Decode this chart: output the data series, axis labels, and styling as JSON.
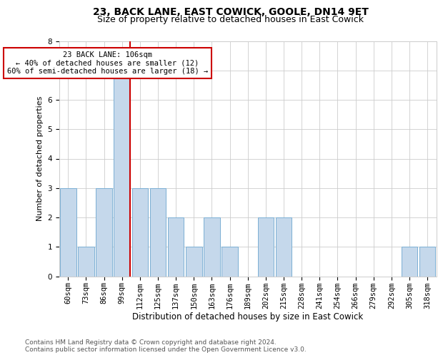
{
  "title1": "23, BACK LANE, EAST COWICK, GOOLE, DN14 9ET",
  "title2": "Size of property relative to detached houses in East Cowick",
  "xlabel": "Distribution of detached houses by size in East Cowick",
  "ylabel": "Number of detached properties",
  "footer1": "Contains HM Land Registry data © Crown copyright and database right 2024.",
  "footer2": "Contains public sector information licensed under the Open Government Licence v3.0.",
  "annotation_line1": "23 BACK LANE: 106sqm",
  "annotation_line2": "← 40% of detached houses are smaller (12)",
  "annotation_line3": "60% of semi-detached houses are larger (18) →",
  "categories": [
    "60sqm",
    "73sqm",
    "86sqm",
    "99sqm",
    "112sqm",
    "125sqm",
    "137sqm",
    "150sqm",
    "163sqm",
    "176sqm",
    "189sqm",
    "202sqm",
    "215sqm",
    "228sqm",
    "241sqm",
    "254sqm",
    "266sqm",
    "279sqm",
    "292sqm",
    "305sqm",
    "318sqm"
  ],
  "values": [
    3,
    1,
    3,
    7,
    3,
    3,
    2,
    1,
    2,
    1,
    0,
    2,
    2,
    0,
    0,
    0,
    0,
    0,
    0,
    1,
    1
  ],
  "bar_color": "#c5d8eb",
  "bar_edge_color": "#7bafd4",
  "marker_color": "#cc0000",
  "marker_bin_index": 3,
  "ylim": [
    0,
    8
  ],
  "yticks": [
    0,
    1,
    2,
    3,
    4,
    5,
    6,
    7,
    8
  ],
  "bg_color": "#ffffff",
  "grid_color": "#cccccc",
  "annotation_box_color": "#cc0000",
  "title1_fontsize": 10,
  "title2_fontsize": 9,
  "xlabel_fontsize": 8.5,
  "ylabel_fontsize": 8,
  "tick_fontsize": 7.5,
  "footer_fontsize": 6.5,
  "ann_fontsize": 7.5
}
